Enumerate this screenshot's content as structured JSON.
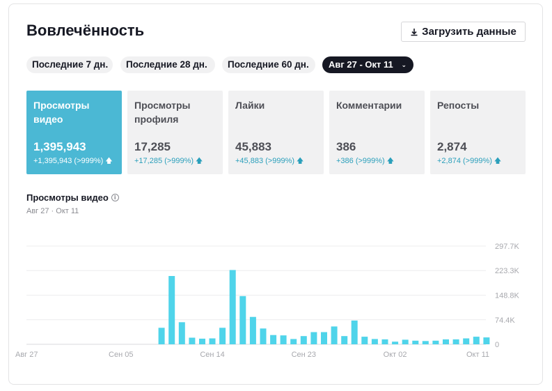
{
  "header": {
    "title": "Вовлечённость",
    "download_label": "Загрузить данные"
  },
  "filters": {
    "last7": "Последние 7 дн.",
    "last28": "Последние 28 дн.",
    "last60": "Последние 60 дн.",
    "date_range": "Авг 27 - Окт 11"
  },
  "metrics": [
    {
      "label": "Просмотры видео",
      "value": "1,395,943",
      "delta": "+1,395,943 (>999%)"
    },
    {
      "label": "Просмотры профиля",
      "value": "17,285",
      "delta": "+17,285 (>999%)"
    },
    {
      "label": "Лайки",
      "value": "45,883",
      "delta": "+45,883 (>999%)"
    },
    {
      "label": "Комментарии",
      "value": "386",
      "delta": "+386 (>999%)"
    },
    {
      "label": "Репосты",
      "value": "2,874",
      "delta": "+2,874 (>999%)"
    }
  ],
  "section": {
    "title": "Просмотры видео",
    "subtitle": "Авг 27 · Окт 11"
  },
  "colors": {
    "accent": "#4bb8d4",
    "bar": "#4fd4ea",
    "delta_text": "#2a9fbb",
    "dark_chip": "#161823"
  },
  "icons": {
    "download": "download-icon",
    "info": "info-icon",
    "arrow_up": "arrow-up-icon",
    "chevron": "chevron-down-icon"
  },
  "chart_data": {
    "type": "bar",
    "title": "",
    "xlabel": "",
    "ylabel": "",
    "ylim": [
      0,
      297700
    ],
    "y_ticks": [
      {
        "value": 0,
        "label": "0"
      },
      {
        "value": 74400,
        "label": "74.4K"
      },
      {
        "value": 148800,
        "label": "148.8K"
      },
      {
        "value": 223300,
        "label": "223.3K"
      },
      {
        "value": 297700,
        "label": "297.7K"
      }
    ],
    "x_tick_labels": [
      {
        "index": 0,
        "label": "Авг 27"
      },
      {
        "index": 9,
        "label": "Сен 05"
      },
      {
        "index": 18,
        "label": "Сен 14"
      },
      {
        "index": 27,
        "label": "Сен 23"
      },
      {
        "index": 36,
        "label": "Окт 02"
      },
      {
        "index": 45,
        "label": "Окт 11"
      }
    ],
    "categories": [
      "Авг 27",
      "Авг 28",
      "Авг 29",
      "Авг 30",
      "Авг 31",
      "Сен 01",
      "Сен 02",
      "Сен 03",
      "Сен 04",
      "Сен 05",
      "Сен 06",
      "Сен 07",
      "Сен 08",
      "Сен 09",
      "Сен 10",
      "Сен 11",
      "Сен 12",
      "Сен 13",
      "Сен 14",
      "Сен 15",
      "Сен 16",
      "Сен 17",
      "Сен 18",
      "Сен 19",
      "Сен 20",
      "Сен 21",
      "Сен 22",
      "Сен 23",
      "Сен 24",
      "Сен 25",
      "Сен 26",
      "Сен 27",
      "Сен 28",
      "Сен 29",
      "Сен 30",
      "Окт 01",
      "Окт 02",
      "Окт 03",
      "Окт 04",
      "Окт 05",
      "Окт 06",
      "Окт 07",
      "Окт 08",
      "Окт 09",
      "Окт 10",
      "Окт 11"
    ],
    "values": [
      0,
      0,
      0,
      0,
      0,
      0,
      0,
      0,
      0,
      0,
      0,
      0,
      0,
      50000,
      207000,
      67000,
      20000,
      17000,
      18000,
      50000,
      225000,
      146000,
      83000,
      48000,
      28000,
      27000,
      16000,
      25000,
      37000,
      37000,
      54000,
      25000,
      72000,
      23000,
      16000,
      15000,
      8000,
      14000,
      11000,
      10000,
      11000,
      15000,
      15000,
      18000,
      23000,
      21000
    ]
  }
}
